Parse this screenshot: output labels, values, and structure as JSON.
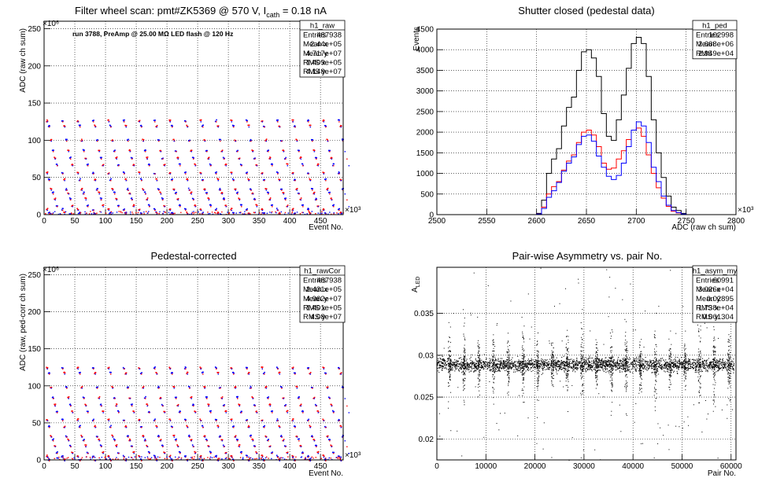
{
  "chart_data": [
    {
      "type": "scatter",
      "title_main": "Filter wheel scan: pmt#ZK5369 @   570 V, I",
      "title_sub": "cath",
      "title_tail": " = 0.18 nA",
      "annotation": "run 3788, PreAmp @ 25.00 MΩ LED flash @  120 Hz",
      "xlabel": "Event No.",
      "ylabel": "ADC (raw ch sum)",
      "x_exponent": "×10³",
      "y_exponent": "×10⁶",
      "xlim": [
        0,
        487
      ],
      "ylim": [
        0,
        260
      ],
      "x_ticks": [
        0,
        50,
        100,
        150,
        200,
        250,
        300,
        350,
        400,
        450
      ],
      "y_ticks": [
        0,
        50,
        100,
        150,
        200,
        250
      ],
      "grid": true,
      "series_colors": [
        "#ff0000",
        "#0000ff"
      ],
      "levels": [
        127,
        120,
        101,
        87,
        77,
        68,
        57,
        48,
        35,
        30,
        22,
        13,
        8,
        3
      ],
      "period": 25,
      "stats": {
        "name": "h1_raw",
        "rows": [
          [
            "Entries",
            "487938"
          ],
          [
            "Mean x",
            "2.44e+05"
          ],
          [
            "Mean y",
            "4.717e+07"
          ],
          [
            "RMS x",
            "1.409e+05"
          ],
          [
            "RMS y",
            "4.148e+07"
          ]
        ]
      }
    },
    {
      "type": "histogram",
      "title": "Shutter closed (pedestal data)",
      "xlabel": "ADC (raw ch sum)",
      "ylabel": "Events",
      "x_exponent": "×10³",
      "xlim": [
        2500,
        2800
      ],
      "ylim": [
        0,
        4500
      ],
      "x_ticks": [
        2500,
        2550,
        2600,
        2650,
        2700,
        2750,
        2800
      ],
      "y_ticks": [
        0,
        500,
        1000,
        1500,
        2000,
        2500,
        3000,
        3500,
        4000,
        4500
      ],
      "grid": true,
      "bin_width": 5,
      "x_start": 2600,
      "series": [
        {
          "name": "total",
          "color": "#000000",
          "values": [
            30,
            350,
            1000,
            1350,
            1600,
            2150,
            2600,
            2850,
            3500,
            3950,
            4000,
            3800,
            3350,
            2450,
            1900,
            1800,
            2300,
            2900,
            3550,
            4150,
            4300,
            4150,
            3350,
            2300,
            1500,
            900,
            450,
            180,
            100,
            30
          ]
        },
        {
          "name": "red",
          "color": "#ff0000",
          "values": [
            15,
            180,
            500,
            680,
            800,
            1080,
            1300,
            1450,
            1750,
            2000,
            2050,
            1930,
            1650,
            1250,
            1100,
            1130,
            1350,
            1550,
            1820,
            2050,
            2100,
            1900,
            1450,
            1000,
            650,
            400,
            200,
            80,
            40,
            10
          ]
        },
        {
          "name": "blue",
          "color": "#0000ff",
          "values": [
            15,
            150,
            420,
            580,
            780,
            1050,
            1250,
            1400,
            1700,
            1900,
            1930,
            1780,
            1420,
            1150,
            930,
            850,
            950,
            1250,
            1650,
            2050,
            2250,
            2150,
            1750,
            1150,
            800,
            450,
            230,
            100,
            50,
            15
          ]
        }
      ],
      "stats": {
        "name": "h1_ped",
        "rows": [
          [
            "Entries",
            "102998"
          ],
          [
            "Mean",
            "2.668e+06"
          ],
          [
            "RMS",
            "2.949e+04"
          ]
        ]
      }
    },
    {
      "type": "scatter",
      "title": "Pedestal-corrected",
      "xlabel": "Event No.",
      "ylabel": "ADC (raw, ped-corr ch sum)",
      "x_exponent": "×10³",
      "y_exponent": "×10⁶",
      "xlim": [
        0,
        487
      ],
      "ylim": [
        0,
        260
      ],
      "x_ticks": [
        0,
        50,
        100,
        150,
        200,
        250,
        300,
        350,
        400,
        450
      ],
      "y_ticks": [
        0,
        50,
        100,
        150,
        200,
        250
      ],
      "grid": true,
      "series_colors": [
        "#ff0000",
        "#0000ff"
      ],
      "levels": [
        125,
        118,
        99,
        85,
        75,
        66,
        55,
        46,
        33,
        28,
        20,
        11,
        6,
        1
      ],
      "period": 25,
      "stats": {
        "name": "h1_rawCor",
        "rows": [
          [
            "Entries",
            "487938"
          ],
          [
            "Mean x",
            "2.431e+05"
          ],
          [
            "Mean y",
            "4.962e+07"
          ],
          [
            "RMS x",
            "1.401e+05"
          ],
          [
            "RMS y",
            "4.08e+07"
          ]
        ]
      }
    },
    {
      "type": "scatter",
      "title": "Pair-wise Asymmetry vs. pair No.",
      "xlabel": "Pair No.",
      "ylabel": "A",
      "ylabel_sub": "LED",
      "xlim": [
        0,
        61000
      ],
      "ylim": [
        0.0175,
        0.0405
      ],
      "x_ticks": [
        0,
        10000,
        20000,
        30000,
        40000,
        50000,
        60000
      ],
      "y_ticks": [
        0.02,
        0.025,
        0.03,
        0.035
      ],
      "grid": true,
      "center": 0.0289,
      "spike_count": 20,
      "color": "#000000",
      "stats": {
        "name": "h1_asym_my",
        "rows": [
          [
            "Entries",
            "60991"
          ],
          [
            "Mean x",
            "3.026e+04"
          ],
          [
            "Mean y",
            "0.02895"
          ],
          [
            "RMS x",
            "1.738e+04"
          ],
          [
            "RMS y",
            "0.001304"
          ]
        ]
      }
    }
  ]
}
